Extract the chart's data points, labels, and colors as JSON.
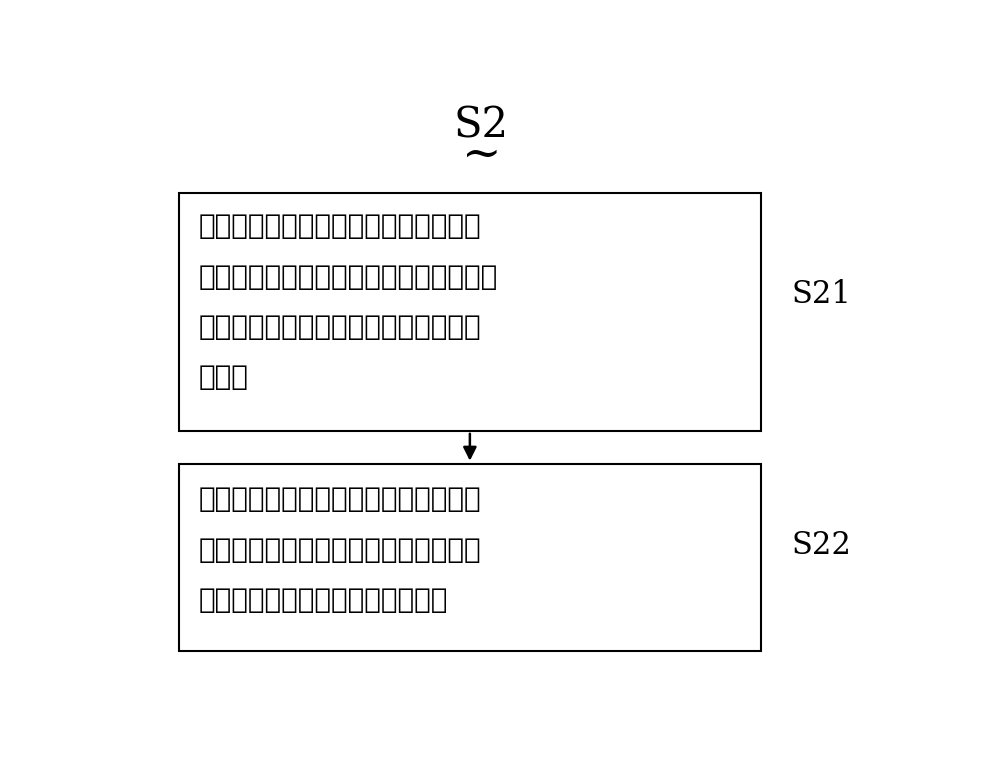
{
  "title": "S2",
  "tilde": "~",
  "box1_label": "S21",
  "box2_label": "S22",
  "box1_text_lines": [
    "将人体运动视频流中依次获取的两帧图",
    "像分别作为当前参考图像及当前帧图像，",
    "对当前参考图像及当前帧图像进行去噪",
    "预处理"
  ],
  "box2_text_lines": [
    "基于光流法利用图像在时间域上的变化",
    "以及相邻帧之间的相关性，计算获得当",
    "前帧图像中图像像素点的运动信息"
  ],
  "background_color": "#ffffff",
  "box_facecolor": "#ffffff",
  "box_edgecolor": "#000000",
  "text_color": "#000000",
  "linewidth": 1.5
}
